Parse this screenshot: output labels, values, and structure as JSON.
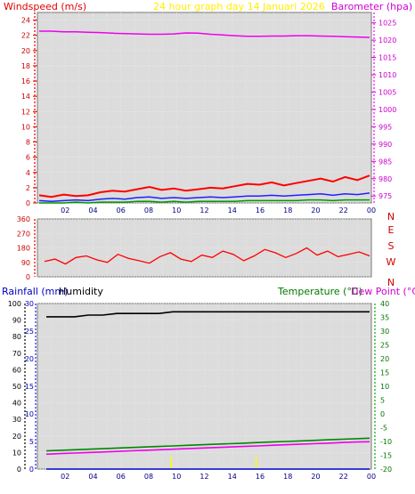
{
  "header": {
    "left_title": "Windspeed (m/s)",
    "center_title": "24 hour graph day   14 Januari 2026",
    "right_title": "Barometer (hpa)"
  },
  "panel3_header": {
    "rainfall": "Rainfall (mm)",
    "humidity": "Humidity",
    "temperature": "Temperature (°C)",
    "dewpoint": "Dew Point (°C)"
  },
  "colors": {
    "background": "#ffffff",
    "plot_bg": "#dcdcdc",
    "wind": "#ff0000",
    "gust_avg": "#2020ff",
    "wind_green": "#009900",
    "barometer": "#ee00ee",
    "wind_dir": "#ff0000",
    "rainfall": "#0000cc",
    "humidity": "#000000",
    "temperature": "#008800",
    "dewpoint": "#ee00ee",
    "rain_marker": "#ffff00"
  },
  "chart_data": [
    {
      "type": "line",
      "name": "wind-barometer",
      "x_ticks": [
        "02",
        "04",
        "06",
        "08",
        "10",
        "12",
        "14",
        "16",
        "18",
        "20",
        "22",
        "00"
      ],
      "left_axis": {
        "label": "Windspeed (m/s)",
        "ylim": [
          0,
          25
        ],
        "ticks": [
          0,
          2,
          4,
          6,
          8,
          10,
          12,
          14,
          16,
          18,
          20,
          22,
          24
        ]
      },
      "right_axis": {
        "label": "Barometer (hpa)",
        "ylim": [
          973,
          1028
        ],
        "ticks": [
          975,
          980,
          985,
          990,
          995,
          1000,
          1005,
          1010,
          1015,
          1020,
          1025
        ]
      },
      "series": [
        {
          "axis": "right",
          "color": "barometer",
          "values": [
            1022.6,
            1022.6,
            1022.4,
            1022.4,
            1022.3,
            1022.2,
            1022.0,
            1021.9,
            1021.8,
            1021.7,
            1021.7,
            1021.8,
            1022.1,
            1022.0,
            1021.7,
            1021.5,
            1021.3,
            1021.1,
            1021.1,
            1021.2,
            1021.2,
            1021.3,
            1021.3,
            1021.2,
            1021.1,
            1021.0,
            1020.9,
            1020.8
          ]
        },
        {
          "axis": "left",
          "color": "wind",
          "values": [
            1.0,
            0.8,
            1.1,
            0.9,
            1.0,
            1.4,
            1.6,
            1.5,
            1.8,
            2.1,
            1.7,
            1.9,
            1.6,
            1.8,
            2.0,
            1.9,
            2.2,
            2.5,
            2.4,
            2.7,
            2.3,
            2.6,
            2.9,
            3.2,
            2.8,
            3.4,
            3.0,
            3.6
          ]
        },
        {
          "axis": "left",
          "color": "gust_avg",
          "values": [
            0.3,
            0.2,
            0.3,
            0.4,
            0.3,
            0.5,
            0.6,
            0.5,
            0.7,
            0.8,
            0.6,
            0.7,
            0.6,
            0.7,
            0.8,
            0.7,
            0.8,
            0.9,
            0.9,
            1.0,
            0.9,
            1.0,
            1.1,
            1.2,
            1.0,
            1.2,
            1.1,
            1.3
          ]
        },
        {
          "axis": "left",
          "color": "wind_green",
          "values": [
            0.0,
            0.0,
            0.0,
            0.1,
            0.0,
            0.1,
            0.1,
            0.1,
            0.2,
            0.2,
            0.1,
            0.2,
            0.1,
            0.2,
            0.2,
            0.2,
            0.2,
            0.3,
            0.3,
            0.3,
            0.3,
            0.3,
            0.4,
            0.4,
            0.3,
            0.4,
            0.4,
            0.4
          ]
        }
      ]
    },
    {
      "type": "line",
      "name": "wind-direction",
      "left_axis": {
        "ylim": [
          0,
          360
        ],
        "ticks": [
          0,
          90,
          180,
          270,
          360
        ],
        "tick_labels": [
          "0",
          "90",
          "180",
          "270",
          "360"
        ]
      },
      "right_labels": [
        "N",
        "W",
        "S",
        "E",
        "N"
      ],
      "series": [
        {
          "color": "wind_dir",
          "values": [
            95,
            110,
            80,
            120,
            130,
            105,
            90,
            140,
            115,
            100,
            85,
            125,
            150,
            110,
            95,
            135,
            120,
            160,
            140,
            100,
            130,
            170,
            150,
            120,
            145,
            180,
            135,
            160,
            125,
            140,
            155,
            130
          ]
        }
      ]
    },
    {
      "type": "line",
      "name": "rain-humidity-temperature",
      "x_ticks": [
        "02",
        "04",
        "06",
        "08",
        "10",
        "12",
        "14",
        "16",
        "18",
        "20",
        "22",
        "00"
      ],
      "left_axis_outer": {
        "label": "Humidity",
        "ylim": [
          0,
          100
        ],
        "ticks": [
          0,
          10,
          20,
          30,
          40,
          50,
          60,
          70,
          80,
          90,
          100
        ]
      },
      "left_axis_inner": {
        "label": "Rainfall (mm)",
        "ylim": [
          0,
          30
        ],
        "ticks": [
          0,
          5,
          10,
          15,
          20,
          25,
          30
        ]
      },
      "right_axis": {
        "label": "Temperature (°C)",
        "ylim": [
          -20,
          40
        ],
        "ticks": [
          -20,
          -15,
          -10,
          -5,
          0,
          5,
          10,
          15,
          20,
          25,
          30,
          35,
          40
        ]
      },
      "series": [
        {
          "axis": "outer",
          "color": "humidity",
          "values": [
            92,
            92,
            92,
            93,
            93,
            94,
            94,
            94,
            94,
            95,
            95,
            95,
            95,
            95,
            95,
            95,
            95,
            95,
            95,
            95,
            95,
            95,
            95,
            95
          ]
        },
        {
          "axis": "right",
          "color": "temperature",
          "values": [
            -13.4,
            -13.2,
            -13.0,
            -12.8,
            -12.6,
            -12.4,
            -12.2,
            -12.0,
            -11.8,
            -11.6,
            -11.4,
            -11.2,
            -11.0,
            -10.8,
            -10.6,
            -10.4,
            -10.2,
            -10.0,
            -9.8,
            -9.6,
            -9.4,
            -9.2,
            -9.0,
            -8.8
          ]
        },
        {
          "axis": "right",
          "color": "dewpoint",
          "values": [
            -14.6,
            -14.4,
            -14.2,
            -14.0,
            -13.8,
            -13.6,
            -13.4,
            -13.2,
            -13.0,
            -12.8,
            -12.6,
            -12.4,
            -12.2,
            -12.0,
            -11.8,
            -11.6,
            -11.4,
            -11.2,
            -11.0,
            -10.8,
            -10.6,
            -10.4,
            -10.2,
            -10.1
          ]
        },
        {
          "axis": "inner",
          "color": "rainfall",
          "values": [
            0,
            0,
            0,
            0,
            0,
            0,
            0,
            0,
            0,
            0,
            0,
            0,
            0,
            0,
            0,
            0,
            0,
            0,
            0,
            0,
            0,
            0,
            0,
            0
          ]
        }
      ]
    }
  ]
}
